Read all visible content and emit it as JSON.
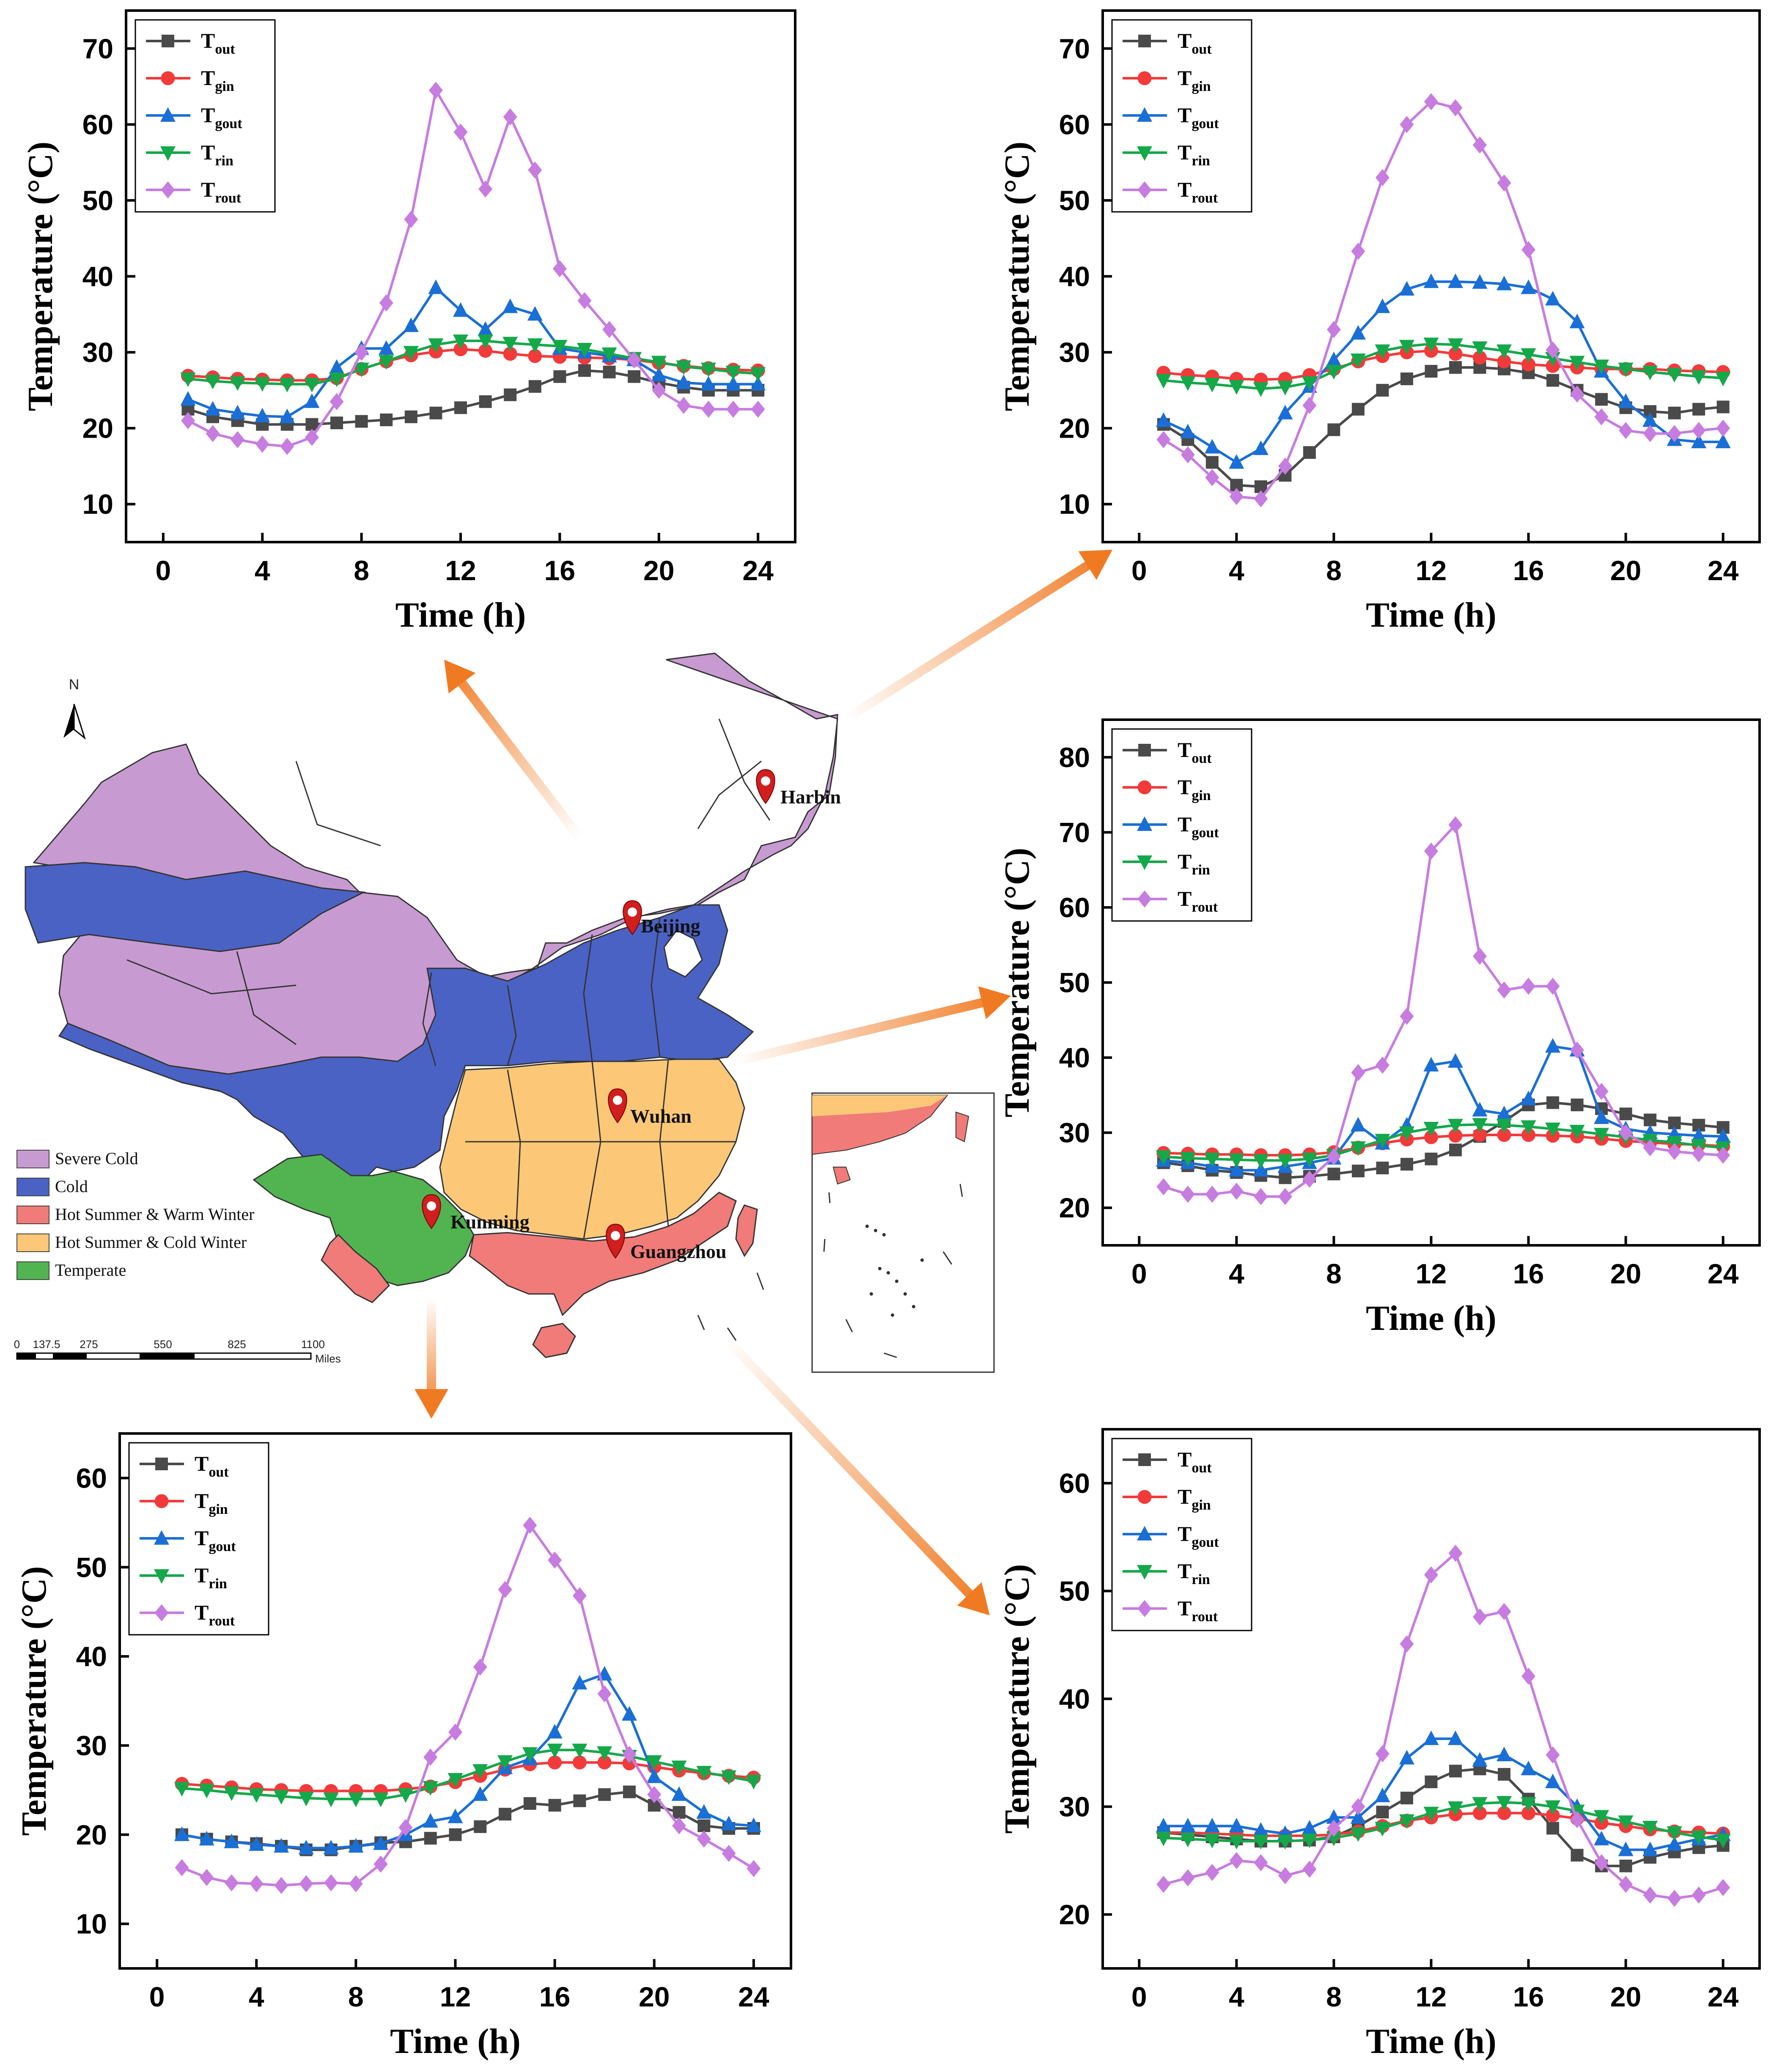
{
  "series_style": [
    {
      "key": "Tout",
      "label_main": "T",
      "label_sub": "out",
      "color": "#4a4a4a",
      "marker": "square"
    },
    {
      "key": "Tgin",
      "label_main": "T",
      "label_sub": "gin",
      "color": "#f23a3a",
      "marker": "circle"
    },
    {
      "key": "Tgout",
      "label_main": "T",
      "label_sub": "gout",
      "color": "#1a6fd6",
      "marker": "triangle-up"
    },
    {
      "key": "Trin",
      "label_main": "T",
      "label_sub": "rin",
      "color": "#14a84a",
      "marker": "triangle-down"
    },
    {
      "key": "Trout",
      "label_main": "T",
      "label_sub": "rout",
      "color": "#c77ce0",
      "marker": "diamond"
    }
  ],
  "chart_data": [
    {
      "id": "beijing",
      "type": "line",
      "xlabel": "Time (h)",
      "ylabel": "Temperature (°C)",
      "xlim": [
        -1.5,
        25.5
      ],
      "ylim": [
        5,
        75
      ],
      "xticks": [
        0,
        4,
        8,
        12,
        16,
        20,
        24
      ],
      "yticks": [
        10,
        20,
        30,
        40,
        50,
        60,
        70
      ],
      "legend_position": "top-left",
      "x": [
        1,
        2,
        3,
        4,
        5,
        6,
        7,
        8,
        9,
        10,
        11,
        12,
        13,
        14,
        15,
        16,
        17,
        18,
        19,
        20,
        21,
        22,
        23,
        24
      ],
      "series": [
        {
          "name": "Tout",
          "values": [
            22.5,
            21.5,
            21,
            20.5,
            20.5,
            20.5,
            20.7,
            20.9,
            21.1,
            21.5,
            22,
            22.7,
            23.5,
            24.4,
            25.5,
            26.8,
            27.6,
            27.4,
            26.8,
            26,
            25.4,
            25,
            25,
            25
          ]
        },
        {
          "name": "Tgin",
          "values": [
            26.9,
            26.7,
            26.5,
            26.4,
            26.3,
            26.3,
            26.6,
            27.8,
            28.8,
            29.6,
            30.1,
            30.4,
            30.2,
            29.8,
            29.5,
            29.4,
            29.3,
            29.2,
            29,
            28.6,
            28.2,
            27.9,
            27.7,
            27.6
          ]
        },
        {
          "name": "Tgout",
          "values": [
            23.8,
            22.5,
            22,
            21.6,
            21.5,
            23.5,
            28,
            30.5,
            30.5,
            33.5,
            38.5,
            35.5,
            33,
            36,
            35,
            30.5,
            30,
            29.5,
            29,
            27,
            26,
            25.8,
            25.8,
            25.8
          ]
        },
        {
          "name": "Trin",
          "values": [
            26.5,
            26.2,
            26,
            25.9,
            25.8,
            25.8,
            26.5,
            27.8,
            28.8,
            30,
            31,
            31.5,
            31.5,
            31.2,
            31,
            30.8,
            30.4,
            29.8,
            29.2,
            28.7,
            28.1,
            27.8,
            27.4,
            27.2
          ]
        },
        {
          "name": "Trout",
          "values": [
            21,
            19.3,
            18.5,
            17.9,
            17.6,
            18.8,
            23.5,
            30,
            36.5,
            47.5,
            64.5,
            59,
            51.5,
            61,
            54,
            41,
            36.8,
            33,
            29,
            25,
            23,
            22.5,
            22.5,
            22.5
          ]
        }
      ]
    },
    {
      "id": "harbin",
      "type": "line",
      "xlabel": "Time (h)",
      "ylabel": "Temperature (°C)",
      "xlim": [
        -1.5,
        25.5
      ],
      "ylim": [
        5,
        75
      ],
      "xticks": [
        0,
        4,
        8,
        12,
        16,
        20,
        24
      ],
      "yticks": [
        10,
        20,
        30,
        40,
        50,
        60,
        70
      ],
      "legend_position": "top-left",
      "x": [
        1,
        2,
        3,
        4,
        5,
        6,
        7,
        8,
        9,
        10,
        11,
        12,
        13,
        14,
        15,
        16,
        17,
        18,
        19,
        20,
        21,
        22,
        23,
        24
      ],
      "series": [
        {
          "name": "Tout",
          "values": [
            20.5,
            18.5,
            15.5,
            12.5,
            12.3,
            13.8,
            16.8,
            19.8,
            22.5,
            25,
            26.5,
            27.5,
            28,
            28,
            27.8,
            27.3,
            26.3,
            25,
            23.8,
            22.7,
            22.2,
            22,
            22.5,
            22.8
          ]
        },
        {
          "name": "Tgin",
          "values": [
            27.3,
            27,
            26.8,
            26.5,
            26.4,
            26.5,
            27,
            27.8,
            28.8,
            29.5,
            30,
            30.2,
            29.8,
            29.3,
            28.8,
            28.4,
            28.2,
            28,
            27.8,
            27.8,
            27.8,
            27.6,
            27.5,
            27.4
          ]
        },
        {
          "name": "Tgout",
          "values": [
            21,
            19.5,
            17.5,
            15.5,
            17.3,
            22,
            25.5,
            29,
            32.5,
            36,
            38.3,
            39.3,
            39.3,
            39.2,
            39,
            38.5,
            37,
            34,
            27.5,
            23.5,
            21,
            18.5,
            18.2,
            18.2
          ]
        },
        {
          "name": "Trin",
          "values": [
            26.3,
            26,
            25.8,
            25.5,
            25.2,
            25.4,
            26,
            27.5,
            29,
            30.2,
            30.8,
            31.1,
            31,
            30.6,
            30.2,
            29.7,
            29.2,
            28.7,
            28.2,
            27.8,
            27.4,
            27.1,
            26.8,
            26.6
          ]
        },
        {
          "name": "Trout",
          "values": [
            18.5,
            16.5,
            13.5,
            11,
            10.7,
            15,
            23,
            33,
            43.3,
            53,
            60,
            63,
            62.2,
            57.3,
            52.3,
            43.5,
            30.3,
            24.5,
            21.5,
            19.7,
            19.3,
            19.3,
            19.7,
            20
          ]
        }
      ]
    },
    {
      "id": "wuhan",
      "type": "line",
      "xlabel": "Time (h)",
      "ylabel": "Temperature (°C)",
      "xlim": [
        -1.5,
        25.5
      ],
      "ylim": [
        15,
        85
      ],
      "xticks": [
        0,
        4,
        8,
        12,
        16,
        20,
        24
      ],
      "yticks": [
        20,
        30,
        40,
        50,
        60,
        70,
        80
      ],
      "legend_position": "top-left",
      "x": [
        1,
        2,
        3,
        4,
        5,
        6,
        7,
        8,
        9,
        10,
        11,
        12,
        13,
        14,
        15,
        16,
        17,
        18,
        19,
        20,
        21,
        22,
        23,
        24
      ],
      "series": [
        {
          "name": "Tout",
          "values": [
            26,
            25.6,
            25,
            24.7,
            24.3,
            24,
            24.2,
            24.5,
            24.9,
            25.3,
            25.8,
            26.5,
            27.7,
            29.5,
            31.5,
            33.7,
            34,
            33.7,
            33.2,
            32.5,
            31.7,
            31.3,
            31,
            30.7
          ]
        },
        {
          "name": "Tgin",
          "values": [
            27.3,
            27.2,
            27.1,
            27.1,
            27,
            27,
            27.1,
            27.4,
            28,
            28.6,
            29.1,
            29.4,
            29.6,
            29.7,
            29.7,
            29.7,
            29.6,
            29.5,
            29.2,
            28.9,
            28.7,
            28.5,
            28.4,
            28.2
          ]
        },
        {
          "name": "Tgout",
          "values": [
            26.3,
            26,
            25.5,
            25,
            25,
            25.5,
            26,
            26.6,
            31,
            28.6,
            31,
            39,
            39.5,
            33,
            32.5,
            34.5,
            41.5,
            41,
            32,
            30.5,
            30,
            29.8,
            29.6,
            29.5
          ]
        },
        {
          "name": "Trin",
          "values": [
            26.8,
            26.6,
            26.5,
            26.4,
            26.3,
            26.3,
            26.5,
            27,
            28,
            29,
            30,
            30.6,
            31,
            31.1,
            31,
            30.8,
            30.5,
            30.2,
            29.8,
            29.4,
            29,
            28.7,
            28.3,
            28
          ]
        },
        {
          "name": "Trout",
          "values": [
            22.8,
            21.8,
            21.8,
            22.2,
            21.5,
            21.5,
            23.8,
            26.8,
            38,
            39,
            45.5,
            67.5,
            71,
            53.5,
            49,
            49.5,
            49.5,
            41,
            35.5,
            30,
            28,
            27.5,
            27.2,
            27
          ]
        }
      ]
    },
    {
      "id": "kunming",
      "type": "line",
      "xlabel": "Time (h)",
      "ylabel": "Temperature (°C)",
      "xlim": [
        -1.5,
        25.5
      ],
      "ylim": [
        5,
        65
      ],
      "xticks": [
        0,
        4,
        8,
        12,
        16,
        20,
        24
      ],
      "yticks": [
        10,
        20,
        30,
        40,
        50,
        60
      ],
      "legend_position": "top-left",
      "x": [
        1,
        2,
        3,
        4,
        5,
        6,
        7,
        8,
        9,
        10,
        11,
        12,
        13,
        14,
        15,
        16,
        17,
        18,
        19,
        20,
        21,
        22,
        23,
        24
      ],
      "series": [
        {
          "name": "Tout",
          "values": [
            20,
            19.5,
            19.2,
            19,
            18.7,
            18.3,
            18.3,
            18.7,
            19.1,
            19.2,
            19.6,
            20,
            20.9,
            22.3,
            23.5,
            23.3,
            23.8,
            24.5,
            24.8,
            23.3,
            22.5,
            21,
            20.7,
            20.7
          ]
        },
        {
          "name": "Tgin",
          "values": [
            25.7,
            25.5,
            25.3,
            25.1,
            25,
            24.9,
            24.9,
            24.9,
            24.9,
            25.1,
            25.4,
            25.9,
            26.6,
            27.3,
            27.9,
            28.1,
            28.1,
            28.1,
            28,
            27.6,
            27.2,
            26.9,
            26.6,
            26.4
          ]
        },
        {
          "name": "Tgout",
          "values": [
            20,
            19.5,
            19.2,
            18.9,
            18.7,
            18.5,
            18.5,
            18.7,
            19,
            20,
            21.5,
            22,
            24.5,
            27.5,
            28.5,
            31.5,
            37,
            38,
            33.5,
            26.5,
            24.5,
            22.5,
            21.2,
            21
          ]
        },
        {
          "name": "Trin",
          "values": [
            25.2,
            25,
            24.7,
            24.5,
            24.3,
            24.1,
            24,
            24,
            24,
            24.5,
            25.3,
            26.2,
            27.2,
            28.2,
            29.1,
            29.5,
            29.5,
            29.2,
            28.8,
            28.2,
            27.6,
            27,
            26.5,
            26
          ]
        },
        {
          "name": "Trout",
          "values": [
            16.3,
            15.2,
            14.6,
            14.5,
            14.3,
            14.5,
            14.6,
            14.5,
            16.7,
            20.8,
            28.7,
            31.5,
            38.8,
            47.5,
            54.7,
            50.8,
            46.8,
            35.8,
            29,
            24.5,
            21,
            19.5,
            17.9,
            16.2
          ]
        }
      ]
    },
    {
      "id": "guangzhou",
      "type": "line",
      "xlabel": "Time (h)",
      "ylabel": "Temperature (°C)",
      "xlim": [
        -1.5,
        25.5
      ],
      "ylim": [
        15,
        65
      ],
      "xticks": [
        0,
        4,
        8,
        12,
        16,
        20,
        24
      ],
      "yticks": [
        20,
        30,
        40,
        50,
        60
      ],
      "legend_position": "top-left",
      "x": [
        1,
        2,
        3,
        4,
        5,
        6,
        7,
        8,
        9,
        10,
        11,
        12,
        13,
        14,
        15,
        16,
        17,
        18,
        19,
        20,
        21,
        22,
        23,
        24
      ],
      "series": [
        {
          "name": "Tout",
          "values": [
            27.6,
            27.4,
            27.2,
            27,
            26.8,
            26.8,
            26.9,
            27.2,
            28.2,
            29.5,
            30.8,
            32.3,
            33.3,
            33.5,
            33,
            30.7,
            28,
            25.5,
            24.5,
            24.5,
            25.3,
            25.8,
            26.2,
            26.4
          ]
        },
        {
          "name": "Tgin",
          "values": [
            27.6,
            27.6,
            27.5,
            27.4,
            27.3,
            27.3,
            27.3,
            27.4,
            27.7,
            28.2,
            28.7,
            29,
            29.3,
            29.4,
            29.4,
            29.4,
            29.2,
            28.9,
            28.5,
            28.2,
            27.9,
            27.7,
            27.6,
            27.5
          ]
        },
        {
          "name": "Tgout",
          "values": [
            28.2,
            28.2,
            28.2,
            28.2,
            27.8,
            27.5,
            28,
            29,
            29,
            31,
            34.5,
            36.3,
            36.3,
            34.3,
            34.8,
            33.5,
            32.3,
            30,
            27,
            26,
            26,
            26.5,
            27,
            27.4
          ]
        },
        {
          "name": "Trin",
          "values": [
            27.1,
            27,
            26.9,
            26.8,
            26.8,
            26.8,
            26.9,
            27.1,
            27.5,
            28,
            28.7,
            29.4,
            29.9,
            30.3,
            30.4,
            30.3,
            30,
            29.6,
            29.1,
            28.6,
            28.1,
            27.6,
            27.2,
            26.9
          ]
        },
        {
          "name": "Trout",
          "values": [
            22.8,
            23.4,
            23.9,
            25,
            24.8,
            23.6,
            24.2,
            28,
            30,
            34.9,
            45.1,
            51.5,
            53.5,
            47.6,
            48.1,
            42.1,
            34.8,
            28.8,
            24.8,
            22.8,
            21.8,
            21.5,
            21.8,
            22.5
          ]
        }
      ]
    }
  ],
  "map": {
    "north_label": "N",
    "cities": [
      {
        "name": "Harbin"
      },
      {
        "name": "Beijing"
      },
      {
        "name": "Wuhan"
      },
      {
        "name": "Kunming"
      },
      {
        "name": "Guangzhou"
      }
    ],
    "zones": [
      {
        "name": "Severe Cold",
        "color": "#c79bd1"
      },
      {
        "name": "Cold",
        "color": "#4a62c4"
      },
      {
        "name": "Hot Summer & Warm Winter",
        "color": "#f07b78"
      },
      {
        "name": "Hot Summer & Cold Winter",
        "color": "#fcc877"
      },
      {
        "name": "Temperate",
        "color": "#52b351"
      }
    ],
    "scale": {
      "labels": [
        "0",
        "137.5",
        "275",
        "550",
        "825",
        "1100"
      ],
      "unit": "Miles"
    }
  },
  "arrow_color": "#f07a22"
}
